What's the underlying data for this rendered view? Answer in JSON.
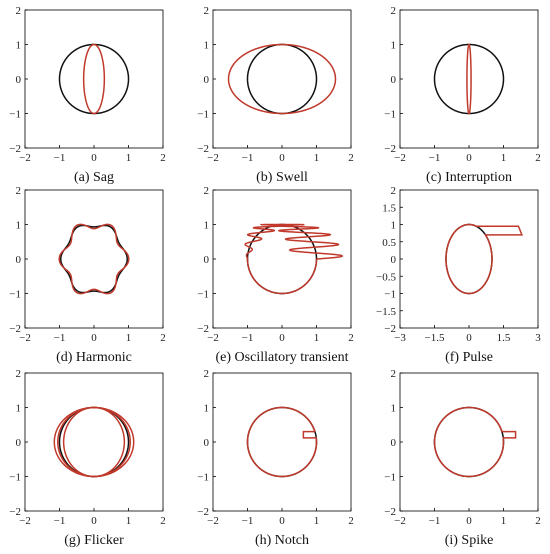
{
  "chart_data": [
    {
      "type": "line",
      "caption": "(a) Sag",
      "xlim": [
        -2,
        2
      ],
      "ylim": [
        -2,
        2
      ],
      "xticks": [
        "-2",
        "-1",
        "0",
        "1",
        "2"
      ],
      "yticks": [
        "-2",
        "-1",
        "0",
        "1",
        "2"
      ],
      "series": [
        {
          "kind": "circle",
          "color": "#111111",
          "rx": 1,
          "ry": 1
        },
        {
          "kind": "ellipse",
          "color": "#c0392b",
          "rx": 0.3,
          "ry": 1.0
        }
      ]
    },
    {
      "type": "line",
      "caption": "(b) Swell",
      "xlim": [
        -2,
        2
      ],
      "ylim": [
        -2,
        2
      ],
      "xticks": [
        "-2",
        "-1",
        "0",
        "1",
        "2"
      ],
      "yticks": [
        "-2",
        "-1",
        "0",
        "1",
        "2"
      ],
      "series": [
        {
          "kind": "circle",
          "color": "#111111",
          "rx": 1,
          "ry": 1
        },
        {
          "kind": "ellipse",
          "color": "#c0392b",
          "rx": 1.55,
          "ry": 1.0
        }
      ]
    },
    {
      "type": "line",
      "caption": "(c) Interruption",
      "xlim": [
        -2,
        2
      ],
      "ylim": [
        -2,
        2
      ],
      "xticks": [
        "-2",
        "-1",
        "0",
        "1",
        "2"
      ],
      "yticks": [
        "-2",
        "-1",
        "0",
        "1",
        "2"
      ],
      "series": [
        {
          "kind": "circle",
          "color": "#111111",
          "rx": 1,
          "ry": 1
        },
        {
          "kind": "ellipse",
          "color": "#c0392b",
          "rx": 0.06,
          "ry": 1.0
        }
      ]
    },
    {
      "type": "line",
      "caption": "(d) Harmonic",
      "xlim": [
        -2,
        2
      ],
      "ylim": [
        -2,
        2
      ],
      "xticks": [
        "-2",
        "-1",
        "0",
        "1",
        "2"
      ],
      "yticks": [
        "-2",
        "-1",
        "0",
        "1",
        "2"
      ],
      "series": [
        {
          "kind": "harmonic",
          "color": "#111111",
          "amp": 0.07
        },
        {
          "kind": "harmonic",
          "color": "#c0392b",
          "amp": 0.12
        }
      ]
    },
    {
      "type": "line",
      "caption": "(e) Oscillatory transient",
      "xlim": [
        -2,
        2
      ],
      "ylim": [
        -2,
        2
      ],
      "xticks": [
        "-2",
        "-1",
        "0",
        "1",
        "2"
      ],
      "yticks": [
        "-2",
        "-1",
        "0",
        "1",
        "2"
      ],
      "series": [
        {
          "kind": "circle",
          "color": "#111111",
          "rx": 1,
          "ry": 1
        },
        {
          "kind": "oscillatory",
          "color": "#c0392b",
          "amp": 0.75,
          "freq": 18
        }
      ]
    },
    {
      "type": "line",
      "caption": "(f) Pulse",
      "xlim": [
        -3,
        3
      ],
      "ylim": [
        -2,
        2
      ],
      "xticks": [
        "-3",
        "-1.5",
        "0",
        "1.5",
        "3"
      ],
      "yticks": [
        "-2",
        "-1.5",
        "-1",
        "-0.5",
        "0",
        "0.5",
        "1",
        "1.5",
        "2"
      ],
      "series": [
        {
          "kind": "circle",
          "color": "#111111",
          "rx": 1,
          "ry": 1
        },
        {
          "kind": "pulse",
          "color": "#c0392b",
          "tip": 2.3,
          "y0": 0.7,
          "y1": 0.95
        }
      ]
    },
    {
      "type": "line",
      "caption": "(g) Flicker",
      "xlim": [
        -2,
        2
      ],
      "ylim": [
        -2,
        2
      ],
      "xticks": [
        "-2",
        "-1",
        "0",
        "1",
        "2"
      ],
      "yticks": [
        "-2",
        "-1",
        "0",
        "1",
        "2"
      ],
      "series": [
        {
          "kind": "circle",
          "color": "#111111",
          "rx": 1,
          "ry": 1
        },
        {
          "kind": "ellipse",
          "color": "#c0392b",
          "rx": 1.15,
          "ry": 1.0
        },
        {
          "kind": "ellipse",
          "color": "#c0392b",
          "rx": 0.88,
          "ry": 1.0
        },
        {
          "kind": "ellipse",
          "color": "#c0392b",
          "rx": 1.05,
          "ry": 1.0
        }
      ]
    },
    {
      "type": "line",
      "caption": "(h) Notch",
      "xlim": [
        -2,
        2
      ],
      "ylim": [
        -2,
        2
      ],
      "xticks": [
        "-2",
        "-1",
        "0",
        "1",
        "2"
      ],
      "yticks": [
        "-2",
        "-1",
        "0",
        "1",
        "2"
      ],
      "series": [
        {
          "kind": "circle",
          "color": "#111111",
          "rx": 1,
          "ry": 1
        },
        {
          "kind": "notch",
          "color": "#c0392b",
          "depth": 0.62,
          "y0": 0.12,
          "y1": 0.3
        }
      ]
    },
    {
      "type": "line",
      "caption": "(i) Spike",
      "xlim": [
        -2,
        2
      ],
      "ylim": [
        -2,
        2
      ],
      "xticks": [
        "-2",
        "-1",
        "0",
        "1",
        "2"
      ],
      "yticks": [
        "-2",
        "-1",
        "0",
        "1",
        "2"
      ],
      "series": [
        {
          "kind": "circle",
          "color": "#111111",
          "rx": 1,
          "ry": 1
        },
        {
          "kind": "spike",
          "color": "#c0392b",
          "tip": 1.35,
          "y0": 0.12,
          "y1": 0.3
        }
      ]
    }
  ]
}
